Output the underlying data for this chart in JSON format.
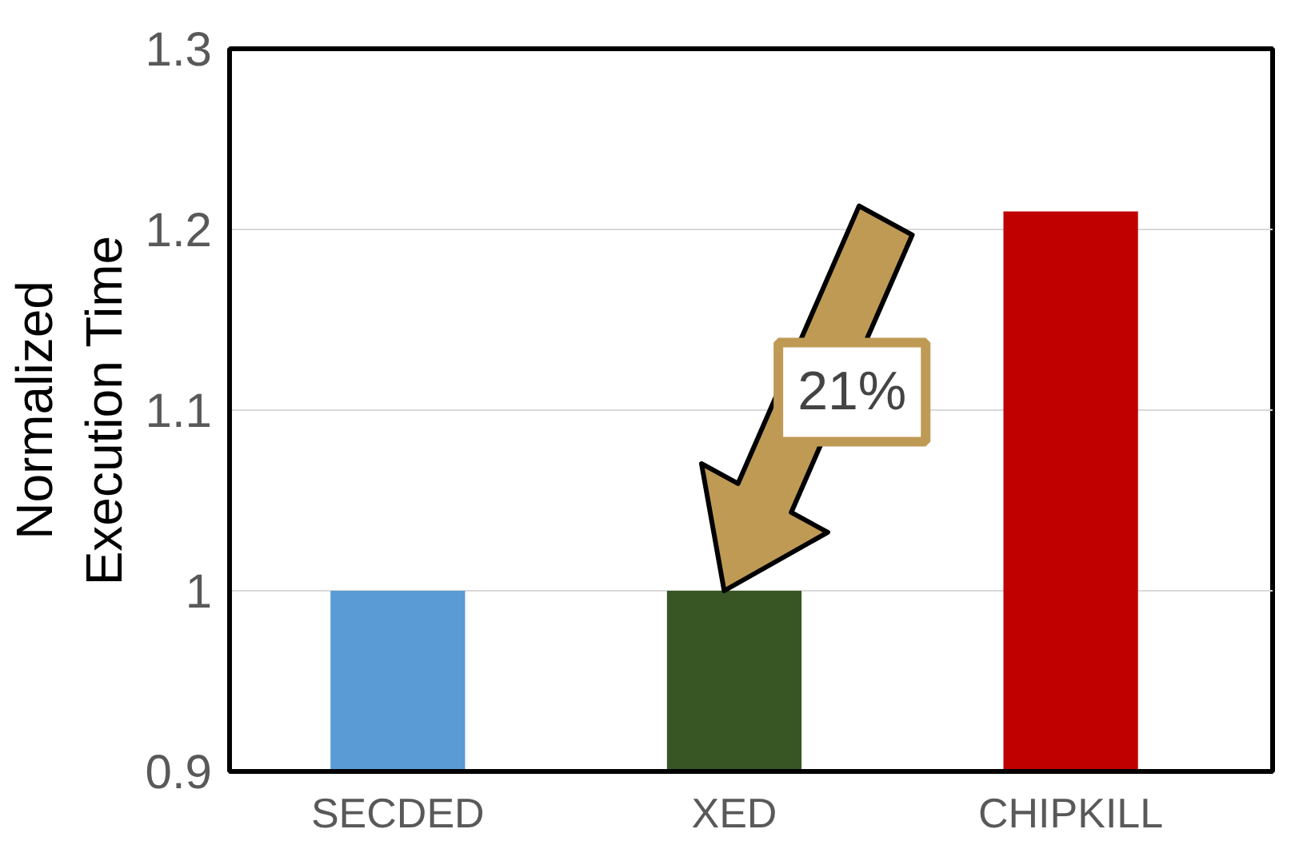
{
  "chart_data": {
    "type": "bar",
    "ylabel": "Normalized\nExecution Time",
    "categories": [
      "SECDED",
      "XED",
      "CHIPKILL"
    ],
    "values": [
      1.0,
      1.0,
      1.21
    ],
    "colors": [
      "#5b9bd5",
      "#375623",
      "#c00000"
    ],
    "ylim": [
      0.9,
      1.3
    ],
    "yticks": [
      0.9,
      1,
      1.1,
      1.2,
      1.3
    ],
    "grid": "y",
    "annotations": [
      "21%"
    ]
  }
}
